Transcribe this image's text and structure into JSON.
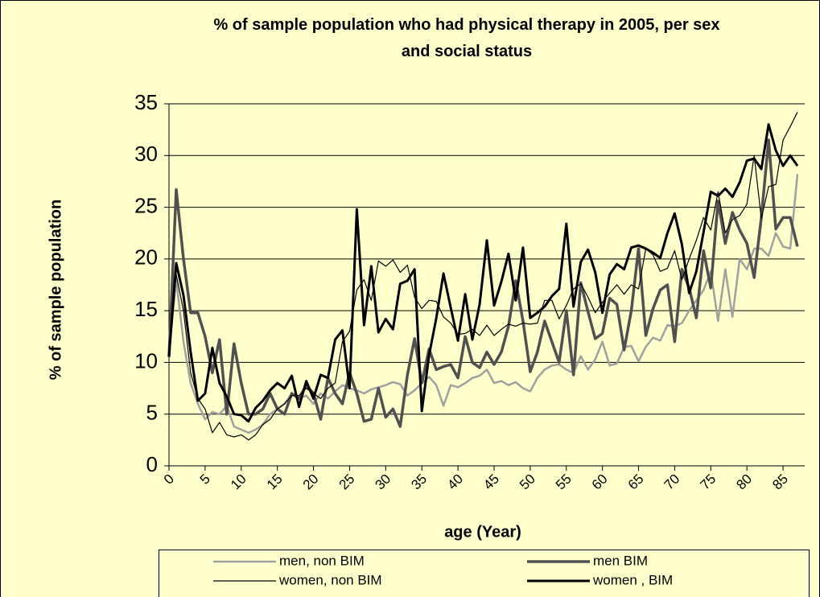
{
  "chart_data": {
    "type": "line",
    "title": "% of sample population who had physical therapy in 2005, per sex and social status",
    "x_label": "age (Year)",
    "y_label": "% of sample population",
    "x": [
      0,
      1,
      2,
      3,
      4,
      5,
      6,
      7,
      8,
      9,
      10,
      11,
      12,
      13,
      14,
      15,
      16,
      17,
      18,
      19,
      20,
      21,
      22,
      23,
      24,
      25,
      26,
      27,
      28,
      29,
      30,
      31,
      32,
      33,
      34,
      35,
      36,
      37,
      38,
      39,
      40,
      41,
      42,
      43,
      44,
      45,
      46,
      47,
      48,
      49,
      50,
      51,
      52,
      53,
      54,
      55,
      56,
      57,
      58,
      59,
      60,
      61,
      62,
      63,
      64,
      65,
      66,
      67,
      68,
      69,
      70,
      71,
      72,
      73,
      74,
      75,
      76,
      77,
      78,
      79,
      80,
      81,
      82,
      83,
      84,
      85,
      86,
      87
    ],
    "xlim": [
      0,
      88
    ],
    "xticks": [
      0,
      5,
      10,
      15,
      20,
      25,
      30,
      35,
      40,
      45,
      50,
      55,
      60,
      65,
      70,
      75,
      80,
      85
    ],
    "ylim": [
      0,
      35
    ],
    "yticks": [
      0,
      5,
      10,
      15,
      20,
      25,
      30,
      35
    ],
    "grid": true,
    "legend": "bottom",
    "series": [
      {
        "name": "men, non BIM",
        "color": "#a0a0a0",
        "values": [
          11,
          18,
          12,
          8,
          6,
          4.5,
          5.2,
          5,
          5.8,
          3.8,
          3.5,
          3.2,
          3.5,
          4,
          5,
          5.5,
          6,
          7,
          6.5,
          6.8,
          6,
          7,
          6.5,
          7.2,
          7.8,
          7.5,
          7.3,
          7,
          7.4,
          7.6,
          7.8,
          8.1,
          7.9,
          6.8,
          7.3,
          8,
          8.6,
          7.8,
          5.8,
          7.8,
          7.6,
          8,
          8.5,
          8.7,
          9.3,
          8,
          8.2,
          7.8,
          8.1,
          7.5,
          7.2,
          8.5,
          9.3,
          9.7,
          9.8,
          9.3,
          9,
          10.6,
          9.3,
          10.3,
          12,
          9.7,
          9.9,
          11.5,
          11.6,
          10.1,
          11.5,
          12.4,
          12.1,
          13.6,
          13.5,
          13.8,
          15,
          16,
          17,
          18.8,
          14,
          19,
          14.4,
          20,
          19,
          21,
          21,
          20.3,
          22.5,
          21.2,
          21,
          28.2
        ]
      },
      {
        "name": "men BIM",
        "color": "#505050",
        "values": [
          10.5,
          26.7,
          20,
          14.8,
          14.8,
          12.5,
          9,
          12.2,
          5,
          11.8,
          8,
          5,
          5,
          5.5,
          7,
          5.5,
          5,
          7,
          6.5,
          7.8,
          7,
          4.5,
          8.5,
          7,
          6,
          9,
          7,
          4.3,
          4.5,
          7.5,
          4.7,
          5.5,
          3.8,
          8.8,
          12.3,
          8,
          11.3,
          9.3,
          9.6,
          9.8,
          8.5,
          12.5,
          10,
          9.5,
          11,
          9.8,
          11,
          13.5,
          17.9,
          14,
          9.1,
          11,
          14,
          12,
          10,
          15,
          8.8,
          17.7,
          14.9,
          12.3,
          12.8,
          16.2,
          15.6,
          11.2,
          15,
          21,
          12.6,
          15.2,
          17,
          17.5,
          12,
          19,
          17.2,
          14.3,
          20.8,
          17.2,
          25.6,
          21.5,
          24.5,
          22.8,
          21.5,
          18.2,
          24,
          31.5,
          22.9,
          24,
          24,
          21.2
        ]
      },
      {
        "name": "women, non BIM",
        "color": "#000000",
        "values": [
          11,
          18.5,
          15,
          9,
          6.5,
          5.5,
          3.2,
          4.2,
          3,
          2.8,
          3,
          2.5,
          3,
          4,
          4.5,
          5.5,
          6,
          6.8,
          6.8,
          7.5,
          7,
          6.5,
          7.5,
          8,
          12,
          13,
          17,
          18,
          16,
          19.8,
          19.3,
          19.9,
          18.7,
          19.4,
          16.3,
          15.2,
          16,
          15.9,
          14.4,
          13.8,
          12.7,
          12.8,
          13.2,
          12.6,
          13.6,
          12.6,
          13.2,
          13.7,
          13.5,
          13.8,
          13.7,
          13.8,
          16,
          16,
          14.2,
          15.5,
          17.1,
          17.6,
          16.3,
          14.8,
          15.8,
          16.7,
          17.5,
          16.6,
          17.5,
          17.1,
          21,
          20.4,
          18.8,
          19.1,
          20.8,
          18,
          20,
          21.8,
          24,
          22.8,
          26.5,
          22.5,
          23.8,
          24.2,
          25.3,
          30,
          23.9,
          27,
          27.2,
          31.5,
          32.8,
          34.2
        ]
      },
      {
        "name": "women , BIM",
        "color": "#000000",
        "values": [
          10.6,
          19.6,
          16.5,
          11,
          6.3,
          7,
          11.4,
          8,
          6.7,
          5,
          4.9,
          4.3,
          5.6,
          6.3,
          7.3,
          8,
          7.5,
          8.7,
          5.7,
          8.2,
          6.5,
          8.8,
          8.5,
          12.2,
          13.1,
          7.5,
          24.8,
          13.6,
          19.3,
          12.9,
          14.2,
          13.2,
          17.6,
          17.9,
          19,
          5.3,
          10.7,
          14.3,
          18.6,
          15.3,
          12.1,
          16.6,
          12.2,
          15.6,
          21.8,
          15.5,
          17.8,
          20.5,
          16,
          21.1,
          14.3,
          14.8,
          15.4,
          16.4,
          17.1,
          23.4,
          15.4,
          19.7,
          20.9,
          18.7,
          14.8,
          18.5,
          19.5,
          19,
          21.1,
          21.3,
          21,
          20.6,
          20.1,
          22.5,
          24.4,
          21.4,
          16.7,
          18.8,
          22.6,
          26.5,
          26.1,
          26.8,
          26,
          27.4,
          29.5,
          29.7,
          28.7,
          33,
          30.5,
          29,
          30,
          29
        ]
      }
    ]
  }
}
